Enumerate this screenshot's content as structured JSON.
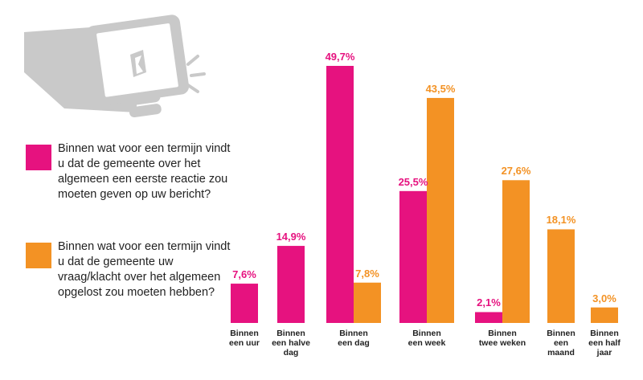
{
  "colors": {
    "series1": "#e6127f",
    "series2": "#f39224",
    "phone": "#c9c9c9"
  },
  "legend": [
    {
      "text": "Binnen wat voor een termijn vindt u dat de gemeente over het algemeen een eerste reactie zou moeten geven op uw bericht?"
    },
    {
      "text": "Binnen wat voor een termijn vindt u dat de gemeente uw vraag/klacht over het algemeen opgelost zou moeten hebben?"
    }
  ],
  "chart_data": {
    "type": "bar",
    "categories": [
      [
        "Binnen",
        "een uur"
      ],
      [
        "Binnen",
        "een halve",
        "dag"
      ],
      [
        "Binnen",
        "een dag"
      ],
      [
        "Binnen",
        "een week"
      ],
      [
        "Binnen",
        "twee weken"
      ],
      [
        "Binnen",
        "een",
        "maand"
      ],
      [
        "Binnen",
        "een half",
        "jaar"
      ]
    ],
    "series": [
      {
        "values": [
          7.6,
          14.9,
          49.7,
          25.5,
          2.1,
          null,
          null
        ],
        "labels": [
          "7,6%",
          "14,9%",
          "49,7%",
          "25,5%",
          "2,1%",
          "",
          ""
        ]
      },
      {
        "values": [
          null,
          null,
          7.8,
          43.5,
          27.6,
          18.1,
          3.0
        ],
        "labels": [
          "",
          "",
          "7,8%",
          "43,5%",
          "27,6%",
          "18,1%",
          "3,0%"
        ]
      }
    ],
    "ylim": [
      0,
      50
    ]
  }
}
